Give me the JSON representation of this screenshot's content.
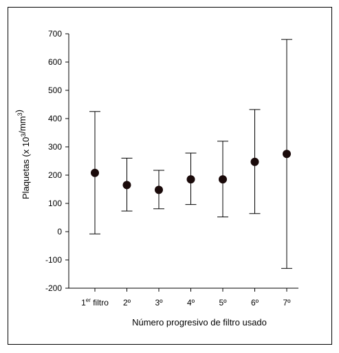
{
  "chart_data": {
    "type": "scatter",
    "subtype": "error-bar",
    "xlabel": "Número progresivo de filtro usado",
    "ylabel": "Plaquetas (x 10³/mm³)",
    "ylim": [
      -200,
      700
    ],
    "yticks": [
      -200,
      -100,
      0,
      100,
      200,
      300,
      400,
      500,
      600,
      700
    ],
    "grid": false,
    "categories": [
      {
        "base": "1",
        "sup": "er",
        "rest": " filtro"
      },
      {
        "base": "2º",
        "sup": "",
        "rest": ""
      },
      {
        "base": "3º",
        "sup": "",
        "rest": ""
      },
      {
        "base": "4º",
        "sup": "",
        "rest": ""
      },
      {
        "base": "5º",
        "sup": "",
        "rest": ""
      },
      {
        "base": "6º",
        "sup": "",
        "rest": ""
      },
      {
        "base": "7º",
        "sup": "",
        "rest": ""
      }
    ],
    "values": [
      208,
      165,
      148,
      185,
      185,
      247,
      275
    ],
    "error_upper": [
      425,
      260,
      217,
      278,
      320,
      432,
      680
    ],
    "error_lower": [
      -8,
      73,
      81,
      96,
      52,
      64,
      -130
    ],
    "colors": {
      "marker": "#1a0a0a",
      "line": "#000000"
    }
  }
}
